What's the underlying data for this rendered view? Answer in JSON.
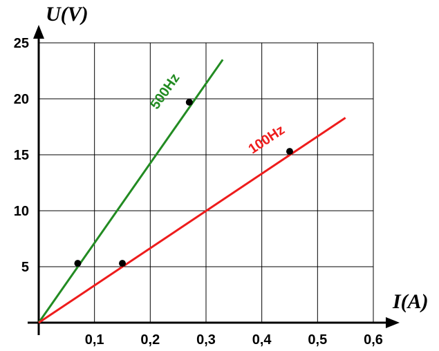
{
  "chart_data": {
    "type": "line",
    "title": "",
    "xlabel": "I(A)",
    "ylabel": "U(V)",
    "xlim": [
      0,
      0.6
    ],
    "ylim": [
      0,
      25
    ],
    "grid": true,
    "x_ticks": [
      "0,1",
      "0,2",
      "0,3",
      "0,4",
      "0,5",
      "0,6"
    ],
    "y_ticks": [
      "5",
      "10",
      "15",
      "20",
      "25"
    ],
    "series": [
      {
        "name": "500Hz",
        "color": "#228b22",
        "line": [
          [
            0,
            0
          ],
          [
            0.33,
            23.5
          ]
        ],
        "points": [
          [
            0.07,
            5.3
          ],
          [
            0.27,
            19.7
          ]
        ]
      },
      {
        "name": "100Hz",
        "color": "#ee1c1c",
        "line": [
          [
            0,
            0
          ],
          [
            0.55,
            18.3
          ]
        ],
        "points": [
          [
            0.15,
            5.3
          ],
          [
            0.45,
            15.3
          ]
        ]
      }
    ]
  }
}
